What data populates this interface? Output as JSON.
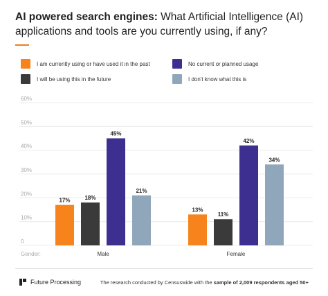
{
  "header": {
    "title_bold": "AI powered search engines:",
    "title_rest": " What Artificial Intelligence (AI) applications and tools are you currently using, if any?"
  },
  "colors": {
    "accent": "#f07c1b",
    "series": [
      "#f7831c",
      "#3a3a3a",
      "#3d2f8f",
      "#90a7bb"
    ]
  },
  "legend": [
    {
      "label": "I am currently using or have used it in the past",
      "color": "#f7831c"
    },
    {
      "label": "No current or planned usage",
      "color": "#3d2f8f"
    },
    {
      "label": "I will be using this in the future",
      "color": "#3a3a3a"
    },
    {
      "label": "I don't know what this is",
      "color": "#90a7bb"
    }
  ],
  "chart_data": {
    "type": "bar",
    "categories": [
      "Male",
      "Female"
    ],
    "category_axis_label": "Gender:",
    "series": [
      {
        "name": "I am currently using or have used it in the past",
        "values": [
          17,
          13
        ]
      },
      {
        "name": "I will be using this in the future",
        "values": [
          18,
          11
        ]
      },
      {
        "name": "No current or planned usage",
        "values": [
          45,
          42
        ]
      },
      {
        "name": "I don't know what this is",
        "values": [
          21,
          34
        ]
      }
    ],
    "value_suffix": "%",
    "ylim": [
      0,
      60
    ],
    "yticks": [
      "0",
      "10%",
      "20%",
      "30%",
      "40%",
      "50%",
      "60%"
    ],
    "grid": true,
    "legend_position": "top"
  },
  "footer": {
    "brand": "Future Processing",
    "note_prefix": "The research conducted by Censuswide with the ",
    "note_bold": "sample of 2,009 respondents aged 50+"
  }
}
